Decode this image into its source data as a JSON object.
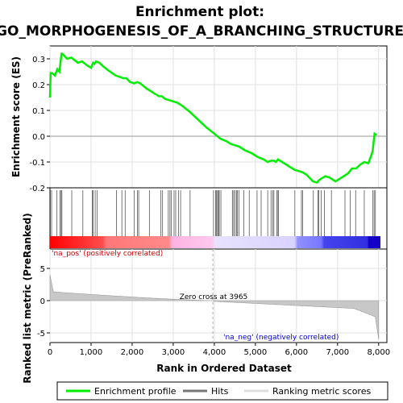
{
  "chart_data": {
    "type": "line",
    "title": "Enrichment plot:",
    "subtitle": "GO_MORPHOGENESIS_OF_A_BRANCHING_STRUCTURE",
    "xlabel": "Rank in Ordered Dataset",
    "ylabel_top": "Enrichment score (ES)",
    "ylabel_bottom": "Ranked list metric (PreRanked)",
    "xlim": [
      0,
      8200
    ],
    "ylim_top": [
      -0.2,
      0.35
    ],
    "ylim_bottom": [
      -6.5,
      8
    ],
    "x_ticks": [
      0,
      1000,
      2000,
      3000,
      4000,
      5000,
      6000,
      7000,
      8000
    ],
    "x_tick_labels": [
      "0",
      "1,000",
      "2,000",
      "3,000",
      "4,000",
      "5,000",
      "6,000",
      "7,000",
      "8,000"
    ],
    "y_ticks_top": [
      -0.2,
      -0.1,
      0.0,
      0.1,
      0.2,
      0.3
    ],
    "y_tick_labels_top": [
      "-0.2",
      "-0.1",
      "0.0",
      "0.1",
      "0.2",
      "0.3"
    ],
    "y_ticks_bottom": [
      -5,
      0,
      5
    ],
    "y_tick_labels_bottom": [
      "-5",
      "0",
      "5"
    ],
    "grid": true,
    "legend_position": "bottom",
    "zero_cross_label": "Zero cross at 3965",
    "zero_cross_rank": 3965,
    "pos_label": "'na_pos' (positively correlated)",
    "neg_label": "'na_neg' (negatively correlated)",
    "total_ranks": 8000,
    "series": [
      {
        "name": "Enrichment profile",
        "color": "#00ee00",
        "x": [
          0,
          15,
          50,
          120,
          180,
          230,
          280,
          300,
          420,
          520,
          560,
          680,
          780,
          820,
          900,
          1000,
          1050,
          1080,
          1120,
          1200,
          1300,
          1420,
          1600,
          1700,
          1780,
          1860,
          1950,
          2050,
          2120,
          2200,
          2350,
          2500,
          2650,
          2720,
          2800,
          2900,
          3000,
          3100,
          3200,
          3400,
          3600,
          3800,
          4000,
          4150,
          4300,
          4400,
          4500,
          4600,
          4750,
          4900,
          5050,
          5200,
          5300,
          5380,
          5450,
          5500,
          5550,
          5700,
          5850,
          5950,
          6050,
          6150,
          6250,
          6400,
          6500,
          6550,
          6600,
          6700,
          6800,
          6950,
          7050,
          7150,
          7250,
          7350,
          7450,
          7550,
          7650,
          7750,
          7850,
          7900,
          7950
        ],
        "values": [
          0.15,
          0.245,
          0.245,
          0.235,
          0.26,
          0.25,
          0.32,
          0.32,
          0.3,
          0.305,
          0.3,
          0.285,
          0.29,
          0.285,
          0.275,
          0.265,
          0.285,
          0.28,
          0.29,
          0.285,
          0.27,
          0.255,
          0.235,
          0.23,
          0.225,
          0.225,
          0.21,
          0.205,
          0.21,
          0.205,
          0.185,
          0.17,
          0.155,
          0.155,
          0.145,
          0.14,
          0.135,
          0.13,
          0.12,
          0.095,
          0.065,
          0.035,
          0.01,
          -0.01,
          -0.02,
          -0.03,
          -0.035,
          -0.04,
          -0.055,
          -0.065,
          -0.08,
          -0.09,
          -0.1,
          -0.095,
          -0.095,
          -0.1,
          -0.09,
          -0.105,
          -0.12,
          -0.13,
          -0.135,
          -0.14,
          -0.15,
          -0.175,
          -0.18,
          -0.17,
          -0.165,
          -0.155,
          -0.16,
          -0.175,
          -0.165,
          -0.155,
          -0.145,
          -0.125,
          -0.125,
          -0.11,
          -0.1,
          -0.105,
          -0.06,
          0.01,
          0.005
        ]
      }
    ],
    "hits": [
      10,
      40,
      170,
      240,
      270,
      290,
      530,
      800,
      1030,
      1050,
      1100,
      1150,
      1620,
      1750,
      1830,
      2050,
      2130,
      2160,
      2420,
      2700,
      2740,
      2880,
      2920,
      2950,
      3020,
      3060,
      3130,
      3180,
      3410,
      3980,
      4030,
      4050,
      4080,
      4100,
      4120,
      4160,
      4440,
      4470,
      4500,
      4540,
      4560,
      4600,
      4720,
      4850,
      5040,
      5140,
      5300,
      5380,
      5420,
      5450,
      5520,
      5550,
      5560,
      5960,
      6120,
      6150,
      6410,
      6520,
      6540,
      6600,
      6680,
      6850,
      7180,
      7310,
      7440,
      7650,
      7860,
      7890,
      7920
    ]
  },
  "legend": [
    {
      "label": "Enrichment profile",
      "color": "#00ee00"
    },
    {
      "label": "Hits",
      "color": "#777777"
    },
    {
      "label": "Ranking metric scores",
      "color": "#dddddd"
    }
  ]
}
